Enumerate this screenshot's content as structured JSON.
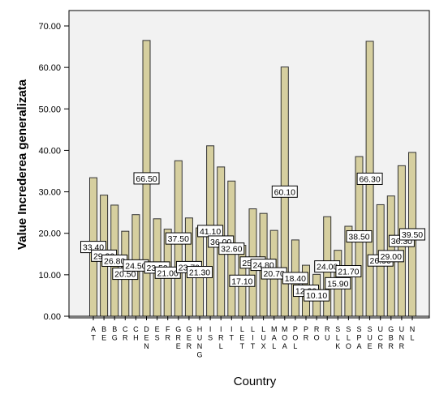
{
  "chart_data": {
    "type": "bar",
    "xlabel": "Country",
    "ylabel": "Value Increderea generalizata",
    "ylim": [
      0,
      75
    ],
    "yticks": [
      "0.00",
      "10.00",
      "20.00",
      "30.00",
      "40.00",
      "50.00",
      "60.00",
      "70.00"
    ],
    "grid": false,
    "colors": {
      "plot_bg": "#f2f2f2",
      "bar_fill": "#d6cf9f",
      "bar_stroke": "#333333"
    },
    "categories": [
      "AT",
      "BE",
      "BG",
      "CR",
      "CH",
      "DEN",
      "ES",
      "FR",
      "GRE",
      "GER",
      "HUNG",
      "IS",
      "IRL",
      "IT",
      "LET",
      "LIT",
      "LUX",
      "MAL",
      "MOA",
      "POL",
      "PR",
      "RO",
      "RU",
      "SLK",
      "SLO",
      "SPA",
      "SUE",
      "UCR",
      "GBR",
      "UNR",
      "NL"
    ],
    "x_labels": [
      [
        "A",
        "T"
      ],
      [
        "B",
        "E"
      ],
      [
        "B",
        "G"
      ],
      [
        "C",
        "R"
      ],
      [
        "C",
        "H"
      ],
      [
        "D",
        "E",
        "N"
      ],
      [
        "E",
        "S"
      ],
      [
        "F",
        "R"
      ],
      [
        "G",
        "R",
        "E"
      ],
      [
        "G",
        "E",
        "R"
      ],
      [
        "H",
        "U",
        "N",
        "G"
      ],
      [
        "I",
        "S"
      ],
      [
        "I",
        "R",
        "L"
      ],
      [
        "I",
        "T"
      ],
      [
        "L",
        "E",
        "T"
      ],
      [
        "L",
        "I",
        "T"
      ],
      [
        "L",
        "U",
        "X"
      ],
      [
        "M",
        "A",
        "L"
      ],
      [
        "M",
        "O",
        "A"
      ],
      [
        "P",
        "O",
        "L"
      ],
      [
        "P",
        "R"
      ],
      [
        "R",
        "O"
      ],
      [
        "R",
        "U"
      ],
      [
        "S",
        "L",
        "K"
      ],
      [
        "S",
        "L",
        "O"
      ],
      [
        "S",
        "P",
        "A"
      ],
      [
        "S",
        "U",
        "E"
      ],
      [
        "U",
        "C",
        "R"
      ],
      [
        "G",
        "B",
        "R"
      ],
      [
        "U",
        "N",
        "R"
      ],
      [
        "N",
        "L"
      ]
    ],
    "values": [
      33.4,
      29.2,
      26.8,
      20.5,
      24.5,
      66.5,
      23.5,
      21.0,
      37.5,
      23.7,
      21.3,
      41.1,
      36.0,
      32.6,
      17.1,
      25.9,
      24.8,
      20.7,
      60.1,
      18.4,
      12.3,
      10.1,
      24.0,
      15.9,
      21.7,
      38.5,
      66.3,
      26.9,
      29.0,
      36.3,
      39.5
    ],
    "data_labels": [
      "33.40",
      "29.20",
      "26.80",
      "20.50",
      "24.50",
      "66.50",
      "23.50",
      "21.00",
      "37.50",
      "23.70",
      "21.30",
      "41.10",
      "36.00",
      "32.60",
      "17.10",
      "25.90",
      "24.80",
      "20.70",
      "60.10",
      "18.40",
      "12.30",
      "10.10",
      "24.00",
      "15.90",
      "21.70",
      "38.50",
      "66.30",
      "26.90",
      "29.00",
      "36.30",
      "39.50"
    ]
  }
}
